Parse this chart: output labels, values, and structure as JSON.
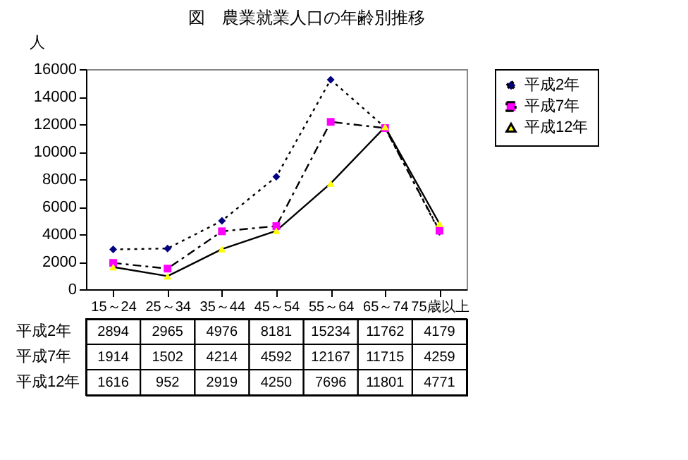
{
  "chart_data": {
    "type": "line",
    "title": "図　農業就業人口の年齢別推移",
    "ylabel": "人",
    "categories": [
      "15～24",
      "25～34",
      "35～44",
      "45～54",
      "55～64",
      "65～74",
      "75歳以上"
    ],
    "series": [
      {
        "name": "平成2年",
        "color": "#000080",
        "marker": "diamond",
        "line_style": "dotted",
        "values": [
          2894,
          2965,
          4976,
          8181,
          15234,
          11762,
          4179
        ]
      },
      {
        "name": "平成7年",
        "color": "#ff00ff",
        "marker": "square",
        "line_style": "dashed",
        "values": [
          1914,
          1502,
          4214,
          4592,
          12167,
          11715,
          4259
        ]
      },
      {
        "name": "平成12年",
        "color": "#ffff00",
        "marker": "triangle",
        "line_style": "solid",
        "values": [
          1616,
          952,
          2919,
          4250,
          7696,
          11801,
          4771
        ]
      }
    ],
    "ylim": [
      0,
      16000
    ],
    "yticks": [
      0,
      2000,
      4000,
      6000,
      8000,
      10000,
      12000,
      14000,
      16000
    ],
    "grid": false,
    "legend": "right",
    "data_labels": true
  }
}
